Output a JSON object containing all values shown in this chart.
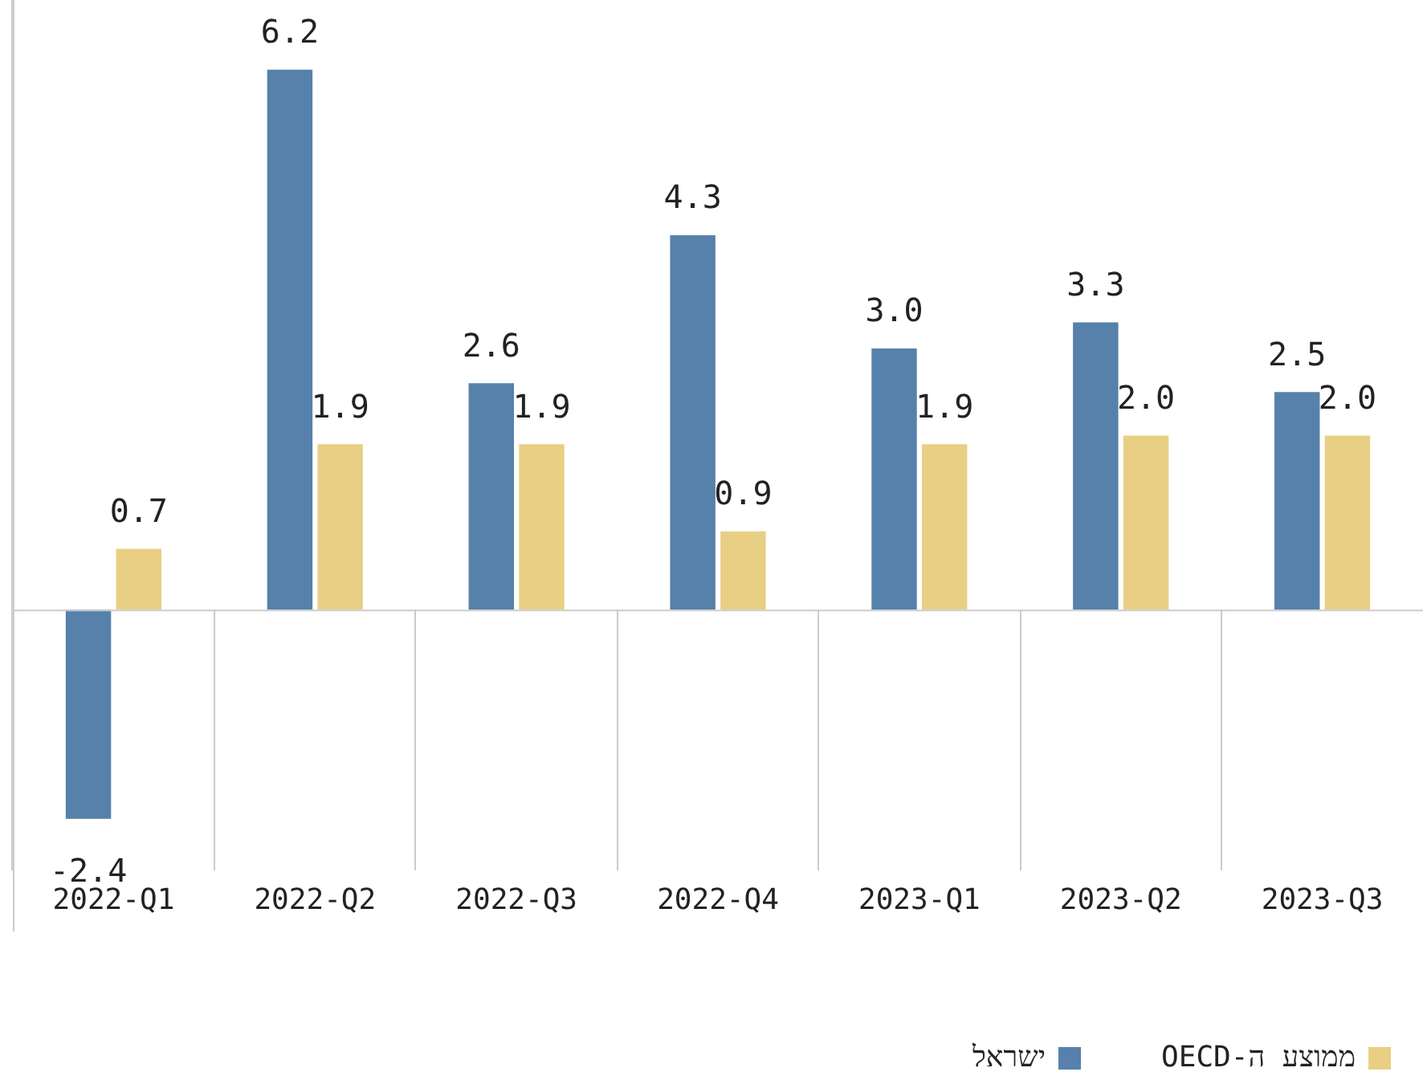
{
  "chart_data": {
    "type": "bar",
    "categories": [
      "2022-Q1",
      "2022-Q2",
      "2022-Q3",
      "2022-Q4",
      "2023-Q1",
      "2023-Q2",
      "2023-Q3"
    ],
    "series": [
      {
        "name": "ישראל",
        "color": "#5681aa",
        "values": [
          -2.4,
          6.2,
          2.6,
          4.3,
          3.0,
          3.3,
          2.5
        ],
        "value_labels": [
          "-2.4",
          "6.2",
          "2.6",
          "4.3",
          "3.0",
          "3.3",
          "2.5"
        ]
      },
      {
        "name": "ממוצע ה-OECD",
        "color": "#e8cf84",
        "values": [
          0.7,
          1.9,
          1.9,
          0.9,
          1.9,
          2.0,
          2.0
        ],
        "value_labels": [
          "0.7",
          "1.9",
          "1.9",
          "0.9",
          "1.9",
          "2.0",
          "2.0"
        ]
      }
    ],
    "tick_labels": "x",
    "data_labels": true,
    "legend": "bottom",
    "grid": "x"
  }
}
